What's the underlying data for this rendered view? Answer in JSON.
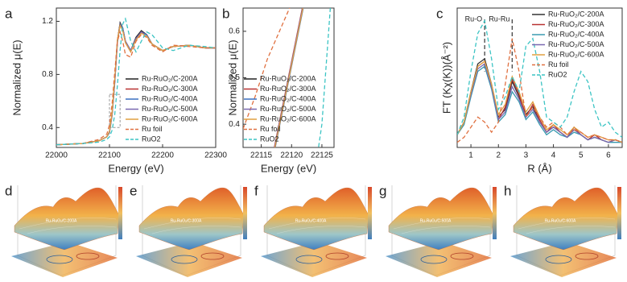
{
  "chart_data": [
    {
      "type": "line",
      "letter": "a",
      "xlabel": "Energy (eV)",
      "ylabel": "Normalized μ(E)",
      "x": [
        22000,
        22050,
        22080,
        22095,
        22100,
        22105,
        22110,
        22115,
        22120,
        22125,
        22130,
        22140,
        22150,
        22160,
        22170,
        22180,
        22200,
        22220,
        22250,
        22280,
        22300
      ],
      "xlim": [
        22000,
        22300
      ],
      "xticks": [
        22000,
        22100,
        22200,
        22300
      ],
      "ylim": [
        0.25,
        1.3
      ],
      "yticks": [
        0.4,
        0.8,
        1.2
      ],
      "legend": "lower right",
      "series": [
        {
          "name": "Ru-RuO₂/C-200A",
          "color": "#222222",
          "dash": false,
          "values": [
            0.27,
            0.28,
            0.3,
            0.33,
            0.37,
            0.5,
            0.75,
            1.05,
            1.19,
            1.15,
            1.05,
            0.98,
            1.08,
            1.13,
            1.1,
            1.03,
            0.98,
            1.01,
            1.02,
            1.0,
            1.0
          ]
        },
        {
          "name": "Ru-RuO₂/C-300A",
          "color": "#b83232",
          "dash": false,
          "values": [
            0.27,
            0.28,
            0.3,
            0.33,
            0.37,
            0.5,
            0.76,
            1.06,
            1.18,
            1.14,
            1.04,
            0.97,
            1.07,
            1.12,
            1.1,
            1.03,
            0.98,
            1.01,
            1.02,
            1.0,
            1.0
          ]
        },
        {
          "name": "Ru-RuO₂/C-400A",
          "color": "#3a6fc0",
          "dash": false,
          "values": [
            0.27,
            0.28,
            0.3,
            0.33,
            0.36,
            0.49,
            0.74,
            1.04,
            1.18,
            1.15,
            1.05,
            0.98,
            1.07,
            1.12,
            1.1,
            1.03,
            0.98,
            1.01,
            1.02,
            1.0,
            1.0
          ]
        },
        {
          "name": "Ru-RuO₂/C-500A",
          "color": "#7a68b0",
          "dash": false,
          "values": [
            0.27,
            0.28,
            0.3,
            0.33,
            0.37,
            0.5,
            0.75,
            1.05,
            1.17,
            1.14,
            1.05,
            0.98,
            1.07,
            1.12,
            1.09,
            1.03,
            0.98,
            1.01,
            1.02,
            1.0,
            1.0
          ]
        },
        {
          "name": "Ru-RuO₂/C-600A",
          "color": "#e0a040",
          "dash": false,
          "values": [
            0.27,
            0.28,
            0.3,
            0.33,
            0.37,
            0.51,
            0.77,
            1.06,
            1.17,
            1.13,
            1.04,
            0.97,
            1.06,
            1.11,
            1.09,
            1.03,
            0.98,
            1.01,
            1.02,
            1.0,
            1.0
          ]
        },
        {
          "name": "Ru foil",
          "color": "#e07040",
          "dash": true,
          "values": [
            0.27,
            0.28,
            0.31,
            0.35,
            0.42,
            0.58,
            0.82,
            1.05,
            1.12,
            1.05,
            0.95,
            0.93,
            1.05,
            1.1,
            1.08,
            1.02,
            0.97,
            1.02,
            1.01,
            1.0,
            1.0
          ]
        },
        {
          "name": "RuO2",
          "color": "#3cc4c4",
          "dash": true,
          "values": [
            0.27,
            0.28,
            0.29,
            0.31,
            0.33,
            0.38,
            0.5,
            0.72,
            0.98,
            1.18,
            1.22,
            1.05,
            0.97,
            1.05,
            1.12,
            1.1,
            1.0,
            0.98,
            1.02,
            1.01,
            1.0
          ]
        }
      ]
    },
    {
      "type": "line",
      "letter": "b",
      "xlabel": "Energy (eV)",
      "ylabel": "Normalized μ(E)",
      "x": [
        22112,
        22114,
        22116,
        22117,
        22118,
        22120,
        22122,
        22124,
        22125,
        22126,
        22127
      ],
      "xlim": [
        22112,
        22127
      ],
      "xticks": [
        22115,
        22120,
        22125
      ],
      "ylim": [
        0.35,
        0.65
      ],
      "yticks": [
        0.4,
        0.5,
        0.6
      ],
      "legend": "lower right",
      "series": [
        {
          "name": "Ru-RuO₂/C-200A",
          "color": "#222222",
          "dash": false,
          "values": [
            null,
            null,
            0.27,
            0.335,
            0.4,
            0.53,
            0.66,
            null,
            null,
            null,
            null
          ]
        },
        {
          "name": "Ru-RuO₂/C-300A",
          "color": "#b83232",
          "dash": false,
          "values": [
            null,
            null,
            0.275,
            0.34,
            0.405,
            0.535,
            0.665,
            null,
            null,
            null,
            null
          ]
        },
        {
          "name": "Ru-RuO₂/C-400A",
          "color": "#3a6fc0",
          "dash": false,
          "values": [
            null,
            null,
            0.265,
            0.33,
            0.395,
            0.525,
            0.655,
            null,
            null,
            null,
            null
          ]
        },
        {
          "name": "Ru-RuO₂/C-500A",
          "color": "#7a68b0",
          "dash": false,
          "values": [
            null,
            null,
            0.27,
            0.337,
            0.402,
            0.532,
            0.662,
            null,
            null,
            null,
            null
          ]
        },
        {
          "name": "Ru-RuO₂/C-600A",
          "color": "#e0a040",
          "dash": false,
          "values": [
            null,
            null,
            0.268,
            0.333,
            0.398,
            0.528,
            0.658,
            null,
            null,
            null,
            null
          ]
        },
        {
          "name": "Ru foil",
          "color": "#e07040",
          "dash": true,
          "values": [
            0.39,
            0.46,
            0.54,
            0.57,
            0.6,
            0.66,
            null,
            null,
            null,
            null,
            null
          ]
        },
        {
          "name": "RuO2",
          "color": "#3cc4c4",
          "dash": true,
          "values": [
            null,
            null,
            null,
            null,
            null,
            null,
            null,
            0.31,
            0.4,
            0.58,
            0.76
          ]
        }
      ]
    },
    {
      "type": "line",
      "letter": "c",
      "xlabel": "R (Å)",
      "ylabel": "FT (Kχ(K))(Å⁻²)",
      "x": [
        0.5,
        0.75,
        1.0,
        1.25,
        1.5,
        1.75,
        2.0,
        2.25,
        2.5,
        2.75,
        3.0,
        3.25,
        3.5,
        3.75,
        4.0,
        4.25,
        4.5,
        4.75,
        5.0,
        5.25,
        5.5,
        5.75,
        6.0,
        6.25,
        6.5
      ],
      "xlim": [
        0.5,
        6.5
      ],
      "xticks": [
        1,
        2,
        3,
        4,
        5,
        6
      ],
      "ylim": [
        0,
        0.55
      ],
      "legend": "upper right",
      "annotations": [
        {
          "text": "Ru-O",
          "x": 1.5
        },
        {
          "text": "Ru-Ru",
          "x": 2.5
        }
      ],
      "series": [
        {
          "name": "Ru-RuO₂/C-200A",
          "color": "#333333",
          "dash": false,
          "values": [
            0.05,
            0.1,
            0.22,
            0.33,
            0.35,
            0.25,
            0.12,
            0.15,
            0.26,
            0.2,
            0.13,
            0.16,
            0.1,
            0.06,
            0.08,
            0.06,
            0.04,
            0.07,
            0.05,
            0.03,
            0.04,
            0.03,
            0.02,
            0.03,
            0.02
          ]
        },
        {
          "name": "Ru-RuO₂/C-300A",
          "color": "#b83232",
          "dash": false,
          "values": [
            0.05,
            0.1,
            0.21,
            0.32,
            0.34,
            0.24,
            0.11,
            0.16,
            0.27,
            0.21,
            0.12,
            0.17,
            0.11,
            0.06,
            0.09,
            0.06,
            0.04,
            0.08,
            0.05,
            0.03,
            0.05,
            0.03,
            0.02,
            0.03,
            0.02
          ]
        },
        {
          "name": "Ru-RuO₂/C-400A",
          "color": "#3a9ab0",
          "dash": false,
          "values": [
            0.05,
            0.09,
            0.2,
            0.3,
            0.32,
            0.23,
            0.1,
            0.13,
            0.22,
            0.18,
            0.11,
            0.14,
            0.09,
            0.05,
            0.07,
            0.05,
            0.04,
            0.06,
            0.05,
            0.03,
            0.04,
            0.03,
            0.02,
            0.02,
            0.02
          ]
        },
        {
          "name": "Ru-RuO₂/C-500A",
          "color": "#7a68b0",
          "dash": false,
          "values": [
            0.05,
            0.1,
            0.21,
            0.31,
            0.33,
            0.24,
            0.11,
            0.14,
            0.24,
            0.19,
            0.12,
            0.15,
            0.1,
            0.06,
            0.08,
            0.06,
            0.04,
            0.07,
            0.05,
            0.03,
            0.04,
            0.03,
            0.02,
            0.03,
            0.02
          ]
        },
        {
          "name": "Ru-RuO₂/C-600A",
          "color": "#e0a040",
          "dash": false,
          "values": [
            0.05,
            0.1,
            0.22,
            0.32,
            0.34,
            0.25,
            0.13,
            0.17,
            0.28,
            0.22,
            0.14,
            0.18,
            0.12,
            0.07,
            0.09,
            0.07,
            0.05,
            0.08,
            0.06,
            0.04,
            0.05,
            0.04,
            0.03,
            0.03,
            0.02
          ]
        },
        {
          "name": "Ru foil",
          "color": "#e07040",
          "dash": true,
          "values": [
            0.02,
            0.04,
            0.08,
            0.12,
            0.1,
            0.06,
            0.1,
            0.25,
            0.43,
            0.3,
            0.12,
            0.16,
            0.12,
            0.08,
            0.1,
            0.08,
            0.05,
            0.07,
            0.06,
            0.04,
            0.05,
            0.04,
            0.03,
            0.03,
            0.02
          ]
        },
        {
          "name": "RuO2",
          "color": "#3cc4c4",
          "dash": true,
          "values": [
            0.05,
            0.12,
            0.3,
            0.45,
            0.5,
            0.35,
            0.15,
            0.2,
            0.28,
            0.22,
            0.4,
            0.43,
            0.3,
            0.12,
            0.1,
            0.08,
            0.12,
            0.22,
            0.3,
            0.26,
            0.15,
            0.08,
            0.1,
            0.06,
            0.04
          ]
        }
      ]
    }
  ],
  "wavelet_panels": [
    {
      "letter": "d",
      "sample": "Ru-RuO₂/C-200A"
    },
    {
      "letter": "e",
      "sample": "Ru-RuO₂/C-300A"
    },
    {
      "letter": "f",
      "sample": "Ru-RuO₂/C-400A"
    },
    {
      "letter": "g",
      "sample": "Ru-RuO₂/C-500A"
    },
    {
      "letter": "h",
      "sample": "Ru-RuO₂/C-600A"
    }
  ]
}
